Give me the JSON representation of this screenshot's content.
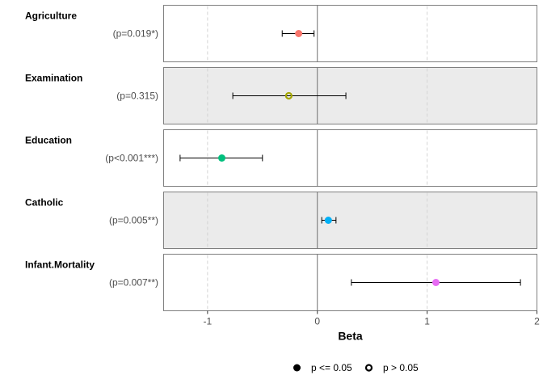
{
  "chart_data": {
    "type": "scatter",
    "subtype": "forest-plot",
    "xlabel": "Beta",
    "xlim": [
      -1.4,
      2.0
    ],
    "x_ticks": [
      -1,
      0,
      1,
      2
    ],
    "x_tick_labels": [
      "-1",
      "0",
      "1",
      "2"
    ],
    "grid": "vertical dashed at ticks",
    "zero_line": 0,
    "panels": [
      {
        "name": "Agriculture",
        "p_label": "(p=0.019*)",
        "beta": -0.17,
        "ci_low": -0.32,
        "ci_high": -0.03,
        "significant": true,
        "color": "#F8766D",
        "shaded": false
      },
      {
        "name": "Examination",
        "p_label": "(p=0.315)",
        "beta": -0.26,
        "ci_low": -0.77,
        "ci_high": 0.26,
        "significant": false,
        "color": "#A3A500",
        "shaded": true
      },
      {
        "name": "Education",
        "p_label": "(p<0.001***)",
        "beta": -0.87,
        "ci_low": -1.25,
        "ci_high": -0.5,
        "significant": true,
        "color": "#00BF7D",
        "shaded": false
      },
      {
        "name": "Catholic",
        "p_label": "(p=0.005**)",
        "beta": 0.1,
        "ci_low": 0.04,
        "ci_high": 0.17,
        "significant": true,
        "color": "#00B0F6",
        "shaded": true
      },
      {
        "name": "Infant.Mortality",
        "p_label": "(p=0.007**)",
        "beta": 1.08,
        "ci_low": 0.31,
        "ci_high": 1.85,
        "significant": true,
        "color": "#E76BF3",
        "shaded": false
      }
    ],
    "legend": {
      "placement": "bottom",
      "items": [
        {
          "label": "p <= 0.05",
          "shape": "filled-circle"
        },
        {
          "label": "p > 0.05",
          "shape": "open-circle"
        }
      ]
    }
  }
}
